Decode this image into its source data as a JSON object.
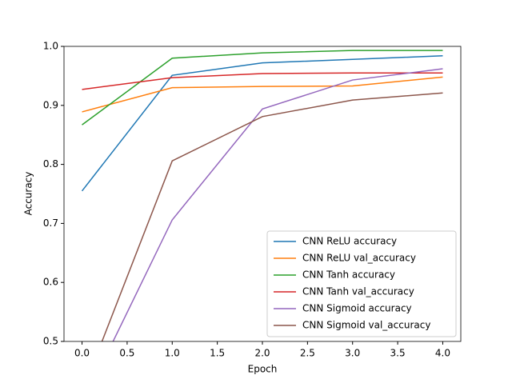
{
  "chart_data": {
    "type": "line",
    "x_label": "Epoch",
    "y_label": "Accuracy",
    "x": [
      0,
      1,
      2,
      3,
      4
    ],
    "series": [
      {
        "name": "CNN ReLU accuracy",
        "color": "#1f77b4",
        "values": [
          0.755,
          0.951,
          0.972,
          0.978,
          0.984
        ]
      },
      {
        "name": "CNN ReLU val_accuracy",
        "color": "#ff7f0e",
        "values": [
          0.889,
          0.93,
          0.932,
          0.933,
          0.948
        ]
      },
      {
        "name": "CNN Tanh accuracy",
        "color": "#2ca02c",
        "values": [
          0.867,
          0.98,
          0.989,
          0.993,
          0.993
        ]
      },
      {
        "name": "CNN Tanh val_accuracy",
        "color": "#d62728",
        "values": [
          0.927,
          0.947,
          0.954,
          0.955,
          0.955
        ]
      },
      {
        "name": "CNN Sigmoid accuracy",
        "color": "#9467bd",
        "values": [
          0.392,
          0.706,
          0.894,
          0.943,
          0.962
        ]
      },
      {
        "name": "CNN Sigmoid val_accuracy",
        "color": "#8c564b",
        "values": [
          0.413,
          0.806,
          0.881,
          0.909,
          0.921
        ]
      }
    ],
    "xlim": [
      -0.2,
      4.2
    ],
    "xticks": [
      {
        "value": 0,
        "label": "0.0"
      },
      {
        "value": 0.5,
        "label": "0.5"
      },
      {
        "value": 1,
        "label": "1.0"
      },
      {
        "value": 1.5,
        "label": "1.5"
      },
      {
        "value": 2,
        "label": "2.0"
      },
      {
        "value": 2.5,
        "label": "2.5"
      },
      {
        "value": 3,
        "label": "3.0"
      },
      {
        "value": 3.5,
        "label": "3.5"
      },
      {
        "value": 4,
        "label": "4.0"
      }
    ],
    "ylim": [
      0.5,
      1.0
    ],
    "yticks": [
      0.5,
      0.6,
      0.7,
      0.8,
      0.9,
      {
        "value": 1.0,
        "label": "1.0"
      }
    ],
    "legend": "lower right"
  }
}
